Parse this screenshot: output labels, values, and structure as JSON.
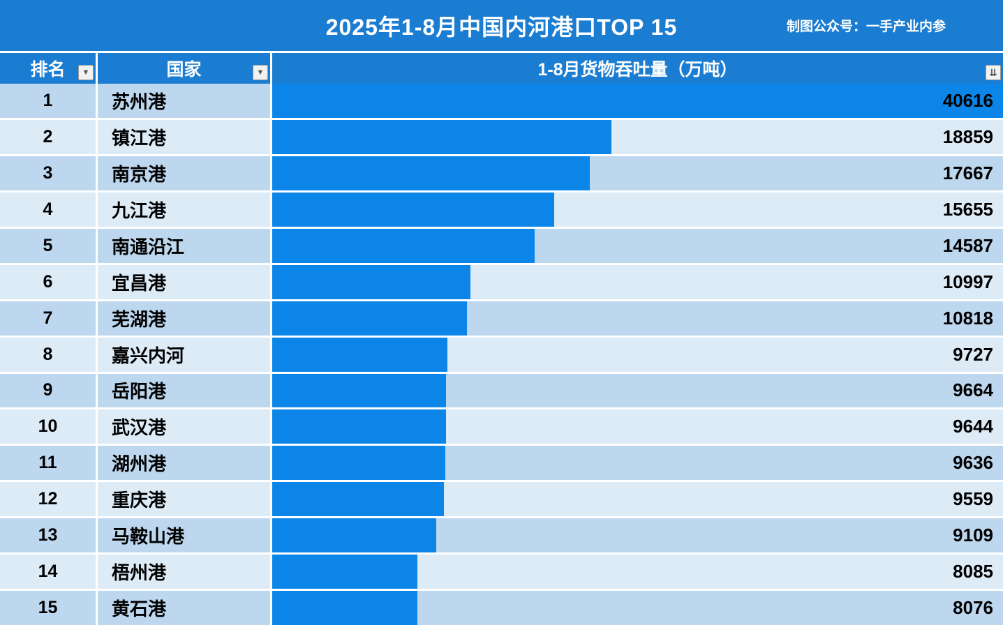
{
  "header": {
    "title": "2025年1-8月中国内河港口TOP 15",
    "subtitle": "制图公众号：一手产业内参"
  },
  "table": {
    "rank_header": "排名",
    "name_header": "国家",
    "value_header": "1-8月货物吞吐量（万吨）"
  },
  "icons": {
    "filter_glyph": "▼",
    "sort_glyph": "⇊"
  },
  "colors": {
    "header_bg": "#1b7dd1",
    "bar": "#0b86e8",
    "row_odd": "#bdd7ee",
    "row_even": "#ddebf7",
    "text": "#000000",
    "header_text": "#ffffff"
  },
  "chart_data": {
    "type": "bar",
    "orientation": "horizontal",
    "title": "2025年1-8月中国内河港口TOP 15",
    "xlabel": "1-8月货物吞吐量（万吨）",
    "xlim": [
      0,
      40616
    ],
    "ranks": [
      1,
      2,
      3,
      4,
      5,
      6,
      7,
      8,
      9,
      10,
      11,
      12,
      13,
      14,
      15
    ],
    "categories": [
      "苏州港",
      "镇江港",
      "南京港",
      "九江港",
      "南通沿江",
      "宜昌港",
      "芜湖港",
      "嘉兴内河",
      "岳阳港",
      "武汉港",
      "湖州港",
      "重庆港",
      "马鞍山港",
      "梧州港",
      "黄石港"
    ],
    "values": [
      40616,
      18859,
      17667,
      15655,
      14587,
      10997,
      10818,
      9727,
      9664,
      9644,
      9636,
      9559,
      9109,
      8085,
      8076
    ]
  }
}
